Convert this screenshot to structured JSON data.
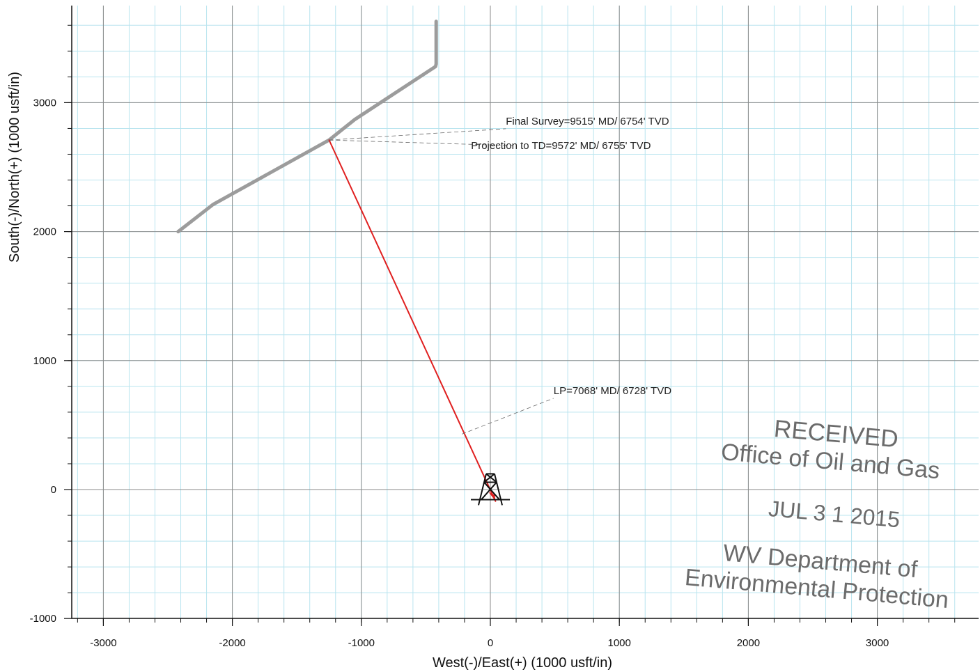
{
  "chart_data": {
    "type": "line",
    "xlabel": "West(-)/East(+) (1000 usft/in)",
    "ylabel": "South(-)/North(+) (1000 usft/in)",
    "xlim": [
      -3300,
      3800
    ],
    "ylim": [
      -1000,
      3700
    ],
    "x_ticks": [
      -3000,
      -2000,
      -1000,
      0,
      1000,
      2000,
      3000
    ],
    "y_ticks": [
      -1000,
      0,
      1000,
      2000,
      3000
    ],
    "grid": true,
    "series": [
      {
        "color": "#9c9c9c",
        "x": [
          -420,
          -420,
          -425,
          -1050,
          -1250,
          -2150,
          -2420
        ],
        "y": [
          3630,
          3300,
          3280,
          2870,
          2710,
          2210,
          2000
        ]
      },
      {
        "color": "#e02020",
        "x": [
          -1250,
          40
        ],
        "y": [
          2710,
          -90
        ]
      }
    ],
    "annotations": [
      {
        "text": "Final Survey=9515' MD/ 6754' TVD",
        "x": 120,
        "y": 2830
      },
      {
        "text": "Projection to TD=9572' MD/ 6755' TVD",
        "x": -150,
        "y": 2640
      },
      {
        "text": "LP=7068' MD/ 6728' TVD",
        "x": 490,
        "y": 740
      }
    ],
    "rig_symbol": {
      "x": 0,
      "y": 30
    }
  },
  "stamp": {
    "received": "RECEIVED",
    "office": "Office of Oil and Gas",
    "date": "JUL 3 1 2015",
    "dept": "WV Department of",
    "env": "Environmental Protection"
  }
}
